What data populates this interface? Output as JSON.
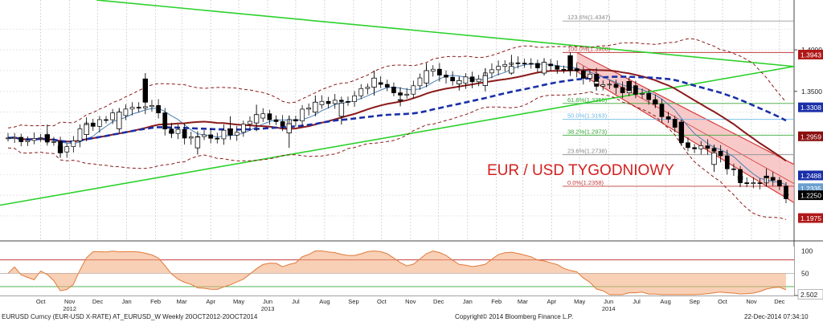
{
  "chart_data": {
    "type": "candlestick",
    "title": "EUR / USD TYGODNIOWY",
    "x_range": [
      "2012-09-10",
      "2014-12-22"
    ],
    "ylim": [
      1.17,
      1.46
    ],
    "y_scale": "linear",
    "grid": true,
    "candles_weekly": [
      {
        "d": "2012-10-22",
        "o": 1.298,
        "h": 1.31,
        "l": 1.287,
        "c": 1.294
      },
      {
        "d": "2012-11-05",
        "o": 1.284,
        "h": 1.289,
        "l": 1.27,
        "c": 1.276
      },
      {
        "d": "2012-12-03",
        "o": 1.298,
        "h": 1.314,
        "l": 1.29,
        "c": 1.31
      },
      {
        "d": "2013-01-07",
        "o": 1.305,
        "h": 1.33,
        "l": 1.3,
        "c": 1.325
      },
      {
        "d": "2013-02-04",
        "o": 1.365,
        "h": 1.372,
        "l": 1.335,
        "c": 1.337
      },
      {
        "d": "2013-03-04",
        "o": 1.302,
        "h": 1.31,
        "l": 1.295,
        "c": 1.3
      },
      {
        "d": "2013-04-01",
        "o": 1.282,
        "h": 1.3,
        "l": 1.274,
        "c": 1.295
      },
      {
        "d": "2013-05-06",
        "o": 1.305,
        "h": 1.32,
        "l": 1.293,
        "c": 1.298
      },
      {
        "d": "2013-06-03",
        "o": 1.312,
        "h": 1.334,
        "l": 1.302,
        "c": 1.322
      },
      {
        "d": "2013-07-08",
        "o": 1.3,
        "h": 1.321,
        "l": 1.282,
        "c": 1.311
      },
      {
        "d": "2013-08-05",
        "o": 1.325,
        "h": 1.345,
        "l": 1.32,
        "c": 1.337
      },
      {
        "d": "2013-09-02",
        "o": 1.32,
        "h": 1.34,
        "l": 1.31,
        "c": 1.336
      },
      {
        "d": "2013-10-07",
        "o": 1.355,
        "h": 1.375,
        "l": 1.345,
        "c": 1.366
      },
      {
        "d": "2013-11-04",
        "o": 1.34,
        "h": 1.355,
        "l": 1.332,
        "c": 1.34
      },
      {
        "d": "2013-12-02",
        "o": 1.36,
        "h": 1.384,
        "l": 1.355,
        "c": 1.375
      },
      {
        "d": "2014-01-06",
        "o": 1.359,
        "h": 1.368,
        "l": 1.351,
        "c": 1.363
      },
      {
        "d": "2014-02-03",
        "o": 1.357,
        "h": 1.378,
        "l": 1.35,
        "c": 1.369
      },
      {
        "d": "2014-03-03",
        "o": 1.372,
        "h": 1.394,
        "l": 1.37,
        "c": 1.38
      },
      {
        "d": "2014-04-07",
        "o": 1.372,
        "h": 1.389,
        "l": 1.369,
        "c": 1.385
      },
      {
        "d": "2014-05-05",
        "o": 1.393,
        "h": 1.397,
        "l": 1.372,
        "c": 1.375
      },
      {
        "d": "2014-06-02",
        "o": 1.359,
        "h": 1.368,
        "l": 1.352,
        "c": 1.362
      },
      {
        "d": "2014-07-07",
        "o": 1.362,
        "h": 1.367,
        "l": 1.35,
        "c": 1.351
      },
      {
        "d": "2014-08-04",
        "o": 1.339,
        "h": 1.343,
        "l": 1.331,
        "c": 1.335
      },
      {
        "d": "2014-09-01",
        "o": 1.313,
        "h": 1.316,
        "l": 1.286,
        "c": 1.291
      },
      {
        "d": "2014-10-06",
        "o": 1.262,
        "h": 1.284,
        "l": 1.253,
        "c": 1.276
      },
      {
        "d": "2014-11-03",
        "o": 1.248,
        "h": 1.256,
        "l": 1.236,
        "c": 1.244
      },
      {
        "d": "2014-12-01",
        "o": 1.248,
        "h": 1.257,
        "l": 1.236,
        "c": 1.246
      },
      {
        "d": "2014-12-22",
        "o": 1.226,
        "h": 1.228,
        "l": 1.224,
        "c": 1.225
      }
    ],
    "fibonacci": [
      {
        "label": "123.6%",
        "value_text": "1.4347",
        "v": 1.4347
      },
      {
        "label": "100.0%",
        "value_text": "1.3968",
        "v": 1.3968
      },
      {
        "label": "61.8%",
        "value_text": "1.3355",
        "v": 1.3355
      },
      {
        "label": "50.0%",
        "value_text": "1.3163",
        "v": 1.3163
      },
      {
        "label": "38.2%",
        "value_text": "1.2973",
        "v": 1.2973
      },
      {
        "label": "23.6%",
        "value_text": "1.2738",
        "v": 1.2738
      },
      {
        "label": "0.0%",
        "value_text": "1.2358",
        "v": 1.2358
      }
    ],
    "y_ticks": [
      {
        "label": "1.4000",
        "v": 1.4
      },
      {
        "label": "1.3500",
        "v": 1.35
      }
    ],
    "price_tags": [
      {
        "label": "1.3943",
        "v": 1.3943,
        "color": "#b01818",
        "text_color": "#ffffff"
      },
      {
        "label": "1.3308",
        "v": 1.3308,
        "color": "#1a2fa8",
        "text_color": "#ffffff"
      },
      {
        "label": "1.2959",
        "v": 1.2959,
        "color": "#8b0f0f",
        "text_color": "#ffffff"
      },
      {
        "label": "1.2488",
        "v": 1.2488,
        "color": "#1a2fa8",
        "text_color": "#ffffff"
      },
      {
        "label": "1.2335",
        "v": 1.2335,
        "color": "#6a9ecf",
        "text_color": "#ffffff"
      },
      {
        "label": "1.2250",
        "v": 1.225,
        "color": "#000000",
        "text_color": "#ffffff"
      },
      {
        "label": "1.1975",
        "v": 1.1975,
        "color": "#b01818",
        "text_color": "#ffffff"
      }
    ],
    "oscillator": {
      "ylim": [
        0,
        110
      ],
      "y_ticks": [
        {
          "label": "100",
          "v": 100
        },
        {
          "label": "50",
          "v": 50
        }
      ],
      "levels": [
        80,
        20
      ],
      "last_value_label": "2.502",
      "last_value": 2.502
    },
    "x_ticks": [
      {
        "label": "Oct",
        "d": "2012-10-15"
      },
      {
        "label": "Nov",
        "d": "2012-11-15"
      },
      {
        "label": "Dec",
        "d": "2012-12-15"
      },
      {
        "label": "Jan",
        "d": "2013-01-15"
      },
      {
        "label": "Feb",
        "d": "2013-02-15"
      },
      {
        "label": "Mar",
        "d": "2013-03-15"
      },
      {
        "label": "Apr",
        "d": "2013-04-15"
      },
      {
        "label": "May",
        "d": "2013-05-15"
      },
      {
        "label": "Jun",
        "d": "2013-06-15"
      },
      {
        "label": "Jul",
        "d": "2013-07-15"
      },
      {
        "label": "Aug",
        "d": "2013-08-15"
      },
      {
        "label": "Sep",
        "d": "2013-09-15"
      },
      {
        "label": "Oct",
        "d": "2013-10-15"
      },
      {
        "label": "Nov",
        "d": "2013-11-15"
      },
      {
        "label": "Dec",
        "d": "2013-12-15"
      },
      {
        "label": "Jan",
        "d": "2014-01-15"
      },
      {
        "label": "Feb",
        "d": "2014-02-15"
      },
      {
        "label": "Mar",
        "d": "2014-03-15"
      },
      {
        "label": "Apr",
        "d": "2014-04-15"
      },
      {
        "label": "May",
        "d": "2014-05-15"
      },
      {
        "label": "Jun",
        "d": "2014-06-15"
      },
      {
        "label": "Jul",
        "d": "2014-07-15"
      },
      {
        "label": "Aug",
        "d": "2014-08-15"
      },
      {
        "label": "Sep",
        "d": "2014-09-15"
      },
      {
        "label": "Oct",
        "d": "2014-10-15"
      },
      {
        "label": "Nov",
        "d": "2014-11-15"
      },
      {
        "label": "Dec",
        "d": "2014-12-15"
      }
    ],
    "year_labels": [
      {
        "label": "2012",
        "d": "2012-11-15"
      },
      {
        "label": "2013",
        "d": "2013-06-15"
      },
      {
        "label": "2014",
        "d": "2014-06-15"
      }
    ],
    "colors": {
      "trendline": "#2bd12b",
      "ma_long": "#8b1a1a",
      "ma_dashed": "#1a2fa8",
      "bollinger": "#8b1a1a",
      "ma_short": "#4a7fb5",
      "channel_fill": "#f6b7b7",
      "channel_line": "#d63a3a",
      "title": "#d42020"
    }
  },
  "footer": {
    "left": "EURUSD Curncy (EUR-USD X-RATE) AT_EURUSD_W  Weekly 20OCT2012-20OCT2014",
    "center": "Copyright© 2014 Bloomberg Finance L.P.",
    "right": "22-Dec-2014 07:34:10"
  }
}
